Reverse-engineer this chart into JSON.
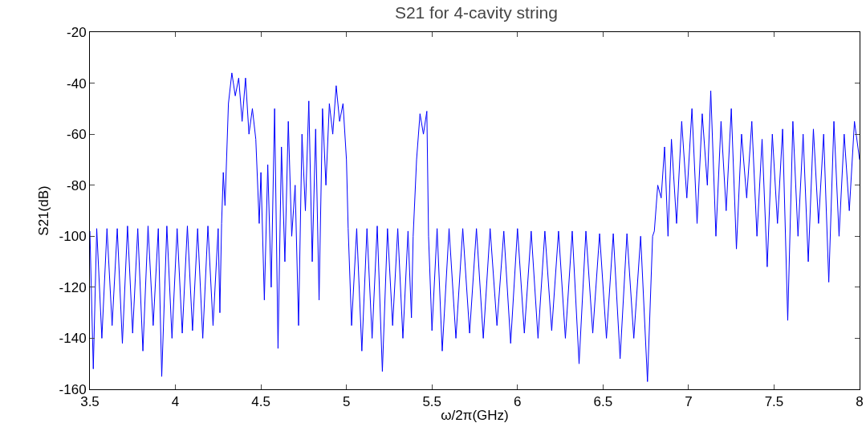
{
  "chart_data": {
    "type": "line",
    "title": "S21 for 4-cavity string",
    "xlabel": "ω/2π(GHz)",
    "ylabel": "S21(dB)",
    "grid": false,
    "marker": "none",
    "line_style": "solid",
    "xlim": [
      3.5,
      8
    ],
    "xticks": [
      3.5,
      4,
      4.5,
      5,
      5.5,
      6,
      6.5,
      7,
      7.5,
      8
    ],
    "ylim": [
      -160,
      -20
    ],
    "yticks": [
      -160,
      -140,
      -120,
      -100,
      -80,
      -60,
      -40,
      -20
    ],
    "x": [
      3.5,
      3.52,
      3.54,
      3.57,
      3.6,
      3.63,
      3.66,
      3.69,
      3.72,
      3.75,
      3.78,
      3.81,
      3.84,
      3.87,
      3.9,
      3.92,
      3.95,
      3.98,
      4.01,
      4.04,
      4.07,
      4.1,
      4.13,
      4.16,
      4.19,
      4.22,
      4.25,
      4.26,
      4.27,
      4.28,
      4.29,
      4.31,
      4.33,
      4.35,
      4.37,
      4.39,
      4.41,
      4.43,
      4.45,
      4.47,
      4.49,
      4.5,
      4.52,
      4.54,
      4.56,
      4.58,
      4.6,
      4.62,
      4.64,
      4.66,
      4.68,
      4.7,
      4.72,
      4.74,
      4.76,
      4.78,
      4.8,
      4.82,
      4.84,
      4.86,
      4.88,
      4.9,
      4.92,
      4.94,
      4.96,
      4.98,
      5.0,
      5.01,
      5.03,
      5.06,
      5.09,
      5.12,
      5.15,
      5.18,
      5.21,
      5.24,
      5.27,
      5.3,
      5.33,
      5.36,
      5.38,
      5.39,
      5.41,
      5.43,
      5.45,
      5.47,
      5.48,
      5.5,
      5.53,
      5.56,
      5.6,
      5.64,
      5.68,
      5.72,
      5.76,
      5.8,
      5.84,
      5.88,
      5.92,
      5.96,
      6.0,
      6.04,
      6.08,
      6.12,
      6.16,
      6.2,
      6.24,
      6.28,
      6.32,
      6.36,
      6.4,
      6.44,
      6.48,
      6.52,
      6.56,
      6.6,
      6.64,
      6.68,
      6.72,
      6.76,
      6.79,
      6.8,
      6.82,
      6.84,
      6.86,
      6.88,
      6.9,
      6.93,
      6.96,
      6.99,
      7.02,
      7.05,
      7.08,
      7.11,
      7.13,
      7.16,
      7.19,
      7.22,
      7.25,
      7.28,
      7.31,
      7.34,
      7.37,
      7.4,
      7.43,
      7.46,
      7.49,
      7.52,
      7.55,
      7.58,
      7.61,
      7.64,
      7.67,
      7.7,
      7.73,
      7.76,
      7.79,
      7.82,
      7.85,
      7.88,
      7.91,
      7.94,
      7.97,
      8.0
    ],
    "series": [
      {
        "color": "#0000ff",
        "values": [
          -98,
          -152,
          -97,
          -140,
          -97,
          -135,
          -97,
          -142,
          -96,
          -138,
          -97,
          -145,
          -96,
          -135,
          -97,
          -155,
          -96,
          -140,
          -97,
          -138,
          -96,
          -137,
          -97,
          -140,
          -96,
          -135,
          -97,
          -130,
          -95,
          -75,
          -88,
          -48,
          -36,
          -45,
          -38,
          -55,
          -38,
          -60,
          -50,
          -62,
          -95,
          -75,
          -125,
          -72,
          -120,
          -50,
          -144,
          -65,
          -110,
          -55,
          -100,
          -80,
          -135,
          -60,
          -90,
          -47,
          -110,
          -58,
          -125,
          -50,
          -80,
          -48,
          -60,
          -41,
          -55,
          -48,
          -70,
          -97,
          -135,
          -97,
          -145,
          -97,
          -140,
          -96,
          -153,
          -97,
          -135,
          -97,
          -140,
          -98,
          -132,
          -100,
          -70,
          -52,
          -60,
          -51,
          -100,
          -137,
          -97,
          -145,
          -97,
          -140,
          -97,
          -138,
          -97,
          -140,
          -97,
          -135,
          -98,
          -142,
          -97,
          -138,
          -98,
          -140,
          -98,
          -137,
          -98,
          -140,
          -98,
          -150,
          -98,
          -138,
          -99,
          -140,
          -99,
          -148,
          -99,
          -140,
          -100,
          -157,
          -100,
          -98,
          -80,
          -85,
          -65,
          -100,
          -62,
          -95,
          -55,
          -85,
          -50,
          -95,
          -52,
          -80,
          -43,
          -100,
          -55,
          -90,
          -50,
          -105,
          -60,
          -85,
          -55,
          -100,
          -62,
          -112,
          -60,
          -95,
          -58,
          -133,
          -55,
          -100,
          -60,
          -110,
          -58,
          -95,
          -60,
          -118,
          -55,
          -100,
          -60,
          -90,
          -55,
          -70
        ]
      }
    ]
  }
}
